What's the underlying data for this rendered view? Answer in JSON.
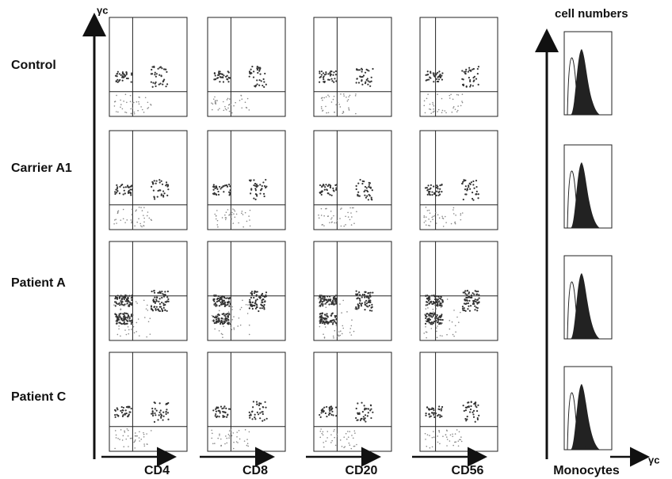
{
  "y_axis_label": "γc",
  "histogram_y_label": "cell numbers",
  "rows": [
    "Control",
    "Carrier A1",
    "Patient A",
    "Patient C"
  ],
  "columns": [
    "CD4",
    "CD8",
    "CD20",
    "CD56",
    "Monocytes"
  ],
  "histogram_x_label": "γc"
}
